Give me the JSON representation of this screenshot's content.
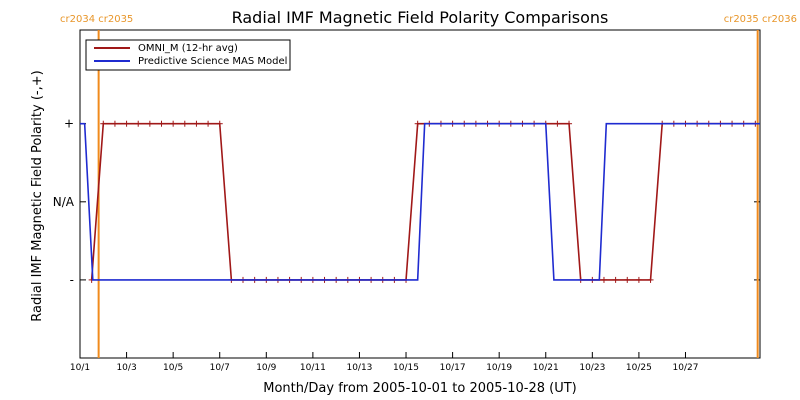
{
  "chart_data": {
    "type": "line",
    "title": "Radial IMF Magnetic Field Polarity Comparisons",
    "xlabel": "Month/Day from 2005-10-01 to 2005-10-28 (UT)",
    "ylabel": "Radial IMF Magnetic Field Polarity (-,+)",
    "y_categories": [
      {
        "value": 1,
        "label": "+"
      },
      {
        "value": 0,
        "label": "N/A"
      },
      {
        "value": -1,
        "label": "-"
      }
    ],
    "ylim": [
      -2.0,
      2.2
    ],
    "xlim_days": [
      0,
      29.2
    ],
    "x_ticks": [
      {
        "day": 0,
        "label": "10/1"
      },
      {
        "day": 2,
        "label": "10/3"
      },
      {
        "day": 4,
        "label": "10/5"
      },
      {
        "day": 6,
        "label": "10/7"
      },
      {
        "day": 8,
        "label": "10/9"
      },
      {
        "day": 10,
        "label": "10/11"
      },
      {
        "day": 12,
        "label": "10/13"
      },
      {
        "day": 14,
        "label": "10/15"
      },
      {
        "day": 16,
        "label": "10/17"
      },
      {
        "day": 18,
        "label": "10/19"
      },
      {
        "day": 20,
        "label": "10/21"
      },
      {
        "day": 22,
        "label": "10/23"
      },
      {
        "day": 24,
        "label": "10/25"
      },
      {
        "day": 26,
        "label": "10/27"
      }
    ],
    "carrington_markers": [
      {
        "day": 0.8,
        "labels": [
          "cr2034",
          "cr2035"
        ],
        "label_side": "left"
      },
      {
        "day": 29.1,
        "labels": [
          "cr2035",
          "cr2036"
        ],
        "label_side": "right"
      }
    ],
    "legend": {
      "placement": "top-left",
      "entries": [
        {
          "name": "OMNI_M (12-hr avg)",
          "color": "#a01818"
        },
        {
          "name": "Predictive Science MAS Model",
          "color": "#1f2bd0"
        }
      ]
    },
    "series": [
      {
        "name": "OMNI_M (12-hr avg)",
        "color": "#a01818",
        "markers": "plus",
        "x": [
          0.5,
          1.0,
          1.5,
          2.0,
          2.5,
          3.0,
          3.5,
          4.0,
          4.5,
          5.0,
          5.5,
          6.0,
          6.5,
          7.0,
          7.5,
          8.0,
          8.5,
          9.0,
          9.5,
          10.0,
          10.5,
          11.0,
          11.5,
          12.0,
          12.5,
          13.0,
          13.5,
          14.0,
          14.5,
          15.0,
          15.5,
          16.0,
          16.5,
          17.0,
          17.5,
          18.0,
          18.5,
          19.0,
          19.5,
          20.0,
          20.5,
          21.0,
          21.5,
          22.0,
          22.5,
          23.0,
          23.5,
          24.0,
          24.5,
          25.0,
          25.5,
          26.0,
          26.5,
          27.0,
          27.5,
          28.0,
          28.5,
          29.0
        ],
        "y": [
          -1,
          1,
          1,
          1,
          1,
          1,
          1,
          1,
          1,
          1,
          1,
          1,
          -1,
          -1,
          -1,
          -1,
          -1,
          -1,
          -1,
          -1,
          -1,
          -1,
          -1,
          -1,
          -1,
          -1,
          -1,
          -1,
          1,
          1,
          1,
          1,
          1,
          1,
          1,
          1,
          1,
          1,
          1,
          1,
          1,
          1,
          -1,
          -1,
          -1,
          -1,
          -1,
          -1,
          -1,
          1,
          1,
          1,
          1,
          1,
          1,
          1,
          1,
          1
        ]
      },
      {
        "name": "Predictive Science MAS Model",
        "color": "#1f2bd0",
        "x": [
          0.0,
          0.2,
          0.55,
          1.0,
          14.5,
          14.8,
          15.0,
          20.0,
          20.35,
          20.5,
          22.3,
          22.6,
          29.2
        ],
        "y": [
          1,
          1,
          -1,
          -1,
          -1,
          1,
          1,
          1,
          -1,
          -1,
          -1,
          1,
          1
        ]
      }
    ]
  }
}
